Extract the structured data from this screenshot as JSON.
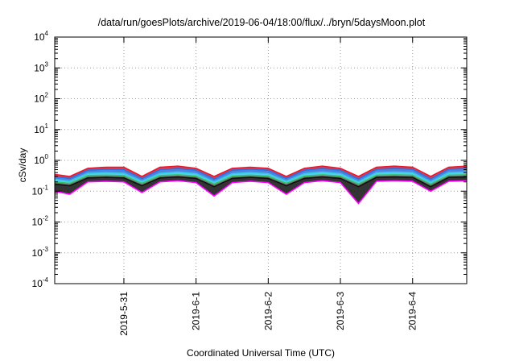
{
  "chart_data": {
    "type": "area",
    "title": "/data/run/goesPlots/archive/2019-06-04/18:00/flux/../bryn/5daysMoon.plot",
    "xlabel": "Coordinated Universal Time (UTC)",
    "ylabel": "cSv/day",
    "yscale": "log",
    "ylim": [
      0.0001,
      10000
    ],
    "y_ticks": [
      {
        "base": "10",
        "exp": "4",
        "value": 10000
      },
      {
        "base": "10",
        "exp": "3",
        "value": 1000
      },
      {
        "base": "10",
        "exp": "2",
        "value": 100
      },
      {
        "base": "10",
        "exp": "1",
        "value": 10
      },
      {
        "base": "10",
        "exp": "0",
        "value": 1
      },
      {
        "base": "10",
        "exp": "-1",
        "value": 0.1
      },
      {
        "base": "10",
        "exp": "-2",
        "value": 0.01
      },
      {
        "base": "10",
        "exp": "-3",
        "value": 0.001
      },
      {
        "base": "10",
        "exp": "-4",
        "value": 0.0001
      }
    ],
    "xlim": [
      "2019-05-30T01:00",
      "2019-06-04T18:00"
    ],
    "x_ticks": [
      {
        "label": "2019-5-31",
        "value": "2019-05-31T00:00"
      },
      {
        "label": "2019-6-1",
        "value": "2019-06-01T00:00"
      },
      {
        "label": "2019-6-2",
        "value": "2019-06-02T00:00"
      },
      {
        "label": "2019-6-3",
        "value": "2019-06-03T00:00"
      },
      {
        "label": "2019-6-4",
        "value": "2019-06-04T00:00"
      }
    ],
    "grid": true,
    "x": [
      "2019-05-30T01:00",
      "2019-05-30T06:00",
      "2019-05-30T12:00",
      "2019-05-30T18:00",
      "2019-05-31T00:00",
      "2019-05-31T06:00",
      "2019-05-31T12:00",
      "2019-05-31T18:00",
      "2019-06-01T00:00",
      "2019-06-01T06:00",
      "2019-06-01T12:00",
      "2019-06-01T18:00",
      "2019-06-02T00:00",
      "2019-06-02T06:00",
      "2019-06-02T12:00",
      "2019-06-02T18:00",
      "2019-06-03T00:00",
      "2019-06-03T06:00",
      "2019-06-03T12:00",
      "2019-06-03T18:00",
      "2019-06-04T00:00",
      "2019-06-04T06:00",
      "2019-06-04T12:00",
      "2019-06-04T18:00"
    ],
    "series": [
      {
        "color": "#e8192c",
        "values": [
          0.35,
          0.3,
          0.55,
          0.6,
          0.6,
          0.3,
          0.6,
          0.65,
          0.55,
          0.3,
          0.55,
          0.6,
          0.55,
          0.3,
          0.55,
          0.65,
          0.55,
          0.3,
          0.6,
          0.65,
          0.6,
          0.3,
          0.6,
          0.65
        ]
      },
      {
        "color": "#2e6fdc",
        "values": [
          0.3,
          0.26,
          0.48,
          0.52,
          0.5,
          0.26,
          0.5,
          0.55,
          0.48,
          0.25,
          0.48,
          0.52,
          0.48,
          0.26,
          0.48,
          0.55,
          0.48,
          0.25,
          0.52,
          0.55,
          0.52,
          0.25,
          0.52,
          0.55
        ]
      },
      {
        "color": "#37c8e6",
        "values": [
          0.24,
          0.21,
          0.38,
          0.4,
          0.38,
          0.21,
          0.38,
          0.42,
          0.37,
          0.2,
          0.37,
          0.4,
          0.37,
          0.21,
          0.37,
          0.42,
          0.37,
          0.2,
          0.4,
          0.42,
          0.4,
          0.2,
          0.4,
          0.42
        ]
      },
      {
        "color": "#3cc06a",
        "values": [
          0.2,
          0.18,
          0.32,
          0.33,
          0.32,
          0.18,
          0.32,
          0.34,
          0.31,
          0.17,
          0.31,
          0.33,
          0.31,
          0.18,
          0.31,
          0.34,
          0.31,
          0.17,
          0.33,
          0.34,
          0.33,
          0.17,
          0.33,
          0.34
        ]
      },
      {
        "color": "#111111",
        "values": [
          0.17,
          0.15,
          0.27,
          0.28,
          0.27,
          0.15,
          0.27,
          0.29,
          0.26,
          0.14,
          0.26,
          0.28,
          0.26,
          0.15,
          0.26,
          0.29,
          0.26,
          0.14,
          0.28,
          0.29,
          0.28,
          0.14,
          0.28,
          0.29
        ]
      },
      {
        "color": "#ff00ff",
        "values": [
          0.1,
          0.08,
          0.2,
          0.21,
          0.2,
          0.09,
          0.2,
          0.22,
          0.19,
          0.07,
          0.19,
          0.21,
          0.19,
          0.08,
          0.19,
          0.22,
          0.19,
          0.04,
          0.21,
          0.22,
          0.21,
          0.1,
          0.21,
          0.22
        ]
      }
    ]
  }
}
